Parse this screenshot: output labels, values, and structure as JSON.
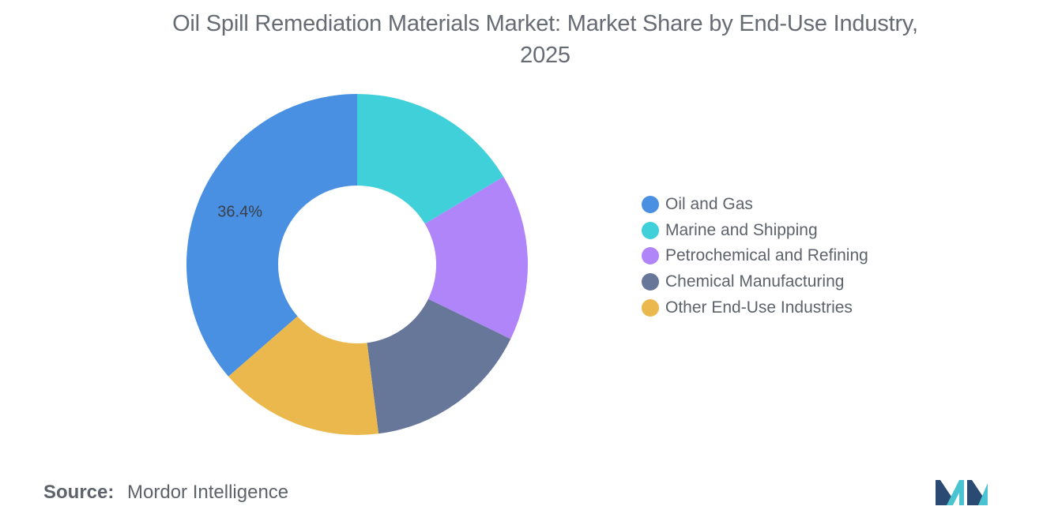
{
  "chart_data": {
    "type": "pie",
    "title_lines": [
      "Oil Spill Remediation Materials Market: Market Share by End-Use Industry,",
      "2025"
    ],
    "categories": [
      "Oil and Gas",
      "Marine and Shipping",
      "Petrochemical and Refining",
      "Chemical Manufacturing",
      "Other End-Use Industries"
    ],
    "values": [
      36.4,
      16.4,
      15.8,
      15.8,
      15.6
    ],
    "data_labels": [
      "36.4%",
      "",
      "",
      "",
      ""
    ],
    "colors": [
      "#4a90e2",
      "#40d0da",
      "#b085fa",
      "#667799",
      "#eab84c"
    ],
    "hole": true,
    "legend_position": "right"
  },
  "source": {
    "label": "Source:",
    "value": "Mordor Intelligence"
  },
  "logo": {
    "icon": "mordor-intelligence-logo-icon",
    "colors": [
      "#2b4a73",
      "#49c4d0"
    ]
  }
}
